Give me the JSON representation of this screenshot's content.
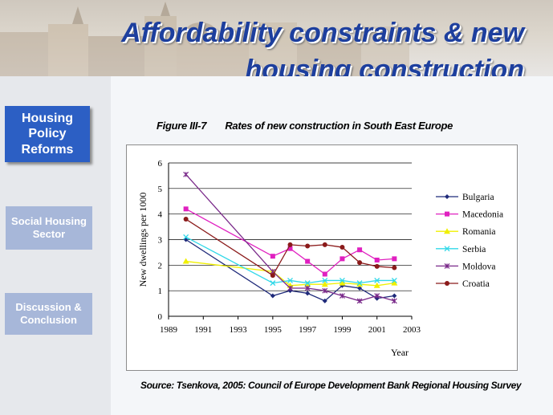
{
  "slide": {
    "title_line1": "Affordability constraints & new",
    "title_line2": "housing construction",
    "figure_title": "Figure III-7       Rates of new construction in South East Europe",
    "source": "Source: Tsenkova, 2005: Council of Europe Development Bank Regional Housing Survey"
  },
  "sidebar": {
    "items": [
      {
        "label": "Housing Policy Reforms",
        "active": true
      },
      {
        "label": "Social Housing Sector",
        "active": false
      },
      {
        "label": "Discussion & Conclusion",
        "active": false
      }
    ]
  },
  "chart_data": {
    "type": "line",
    "xlabel": "Year",
    "ylabel": "New dwellings per 1000",
    "xlim": [
      1989,
      2003
    ],
    "ylim": [
      0,
      6
    ],
    "xticks": [
      1989,
      1991,
      1993,
      1995,
      1997,
      1999,
      2001,
      2003
    ],
    "yticks": [
      0,
      1,
      2,
      3,
      4,
      5,
      6
    ],
    "grid": "horizontal",
    "legend": "right",
    "series": [
      {
        "name": "Bulgaria",
        "color": "#1f2a7a",
        "marker": "diamond",
        "x": [
          1990,
          1995,
          1996,
          1997,
          1998,
          1999,
          2000,
          2001,
          2002
        ],
        "y": [
          3.0,
          0.8,
          1.0,
          0.9,
          0.6,
          1.2,
          1.1,
          0.7,
          0.8
        ]
      },
      {
        "name": "Macedonia",
        "color": "#e020c0",
        "marker": "square",
        "x": [
          1990,
          1995,
          1996,
          1997,
          1998,
          1999,
          2000,
          2001,
          2002
        ],
        "y": [
          4.2,
          2.35,
          2.65,
          2.15,
          1.65,
          2.25,
          2.6,
          2.2,
          2.25
        ]
      },
      {
        "name": "Romania",
        "color": "#f0f000",
        "marker": "triangle",
        "x": [
          1990,
          1995,
          1996,
          1997,
          1998,
          1999,
          2000,
          2001,
          2002
        ],
        "y": [
          2.15,
          1.75,
          1.2,
          1.25,
          1.25,
          1.3,
          1.25,
          1.2,
          1.3
        ]
      },
      {
        "name": "Serbia",
        "color": "#30d8e8",
        "marker": "x",
        "x": [
          1990,
          1995,
          1996,
          1997,
          1998,
          1999,
          2000,
          2001,
          2002
        ],
        "y": [
          3.1,
          1.3,
          1.4,
          1.3,
          1.4,
          1.4,
          1.3,
          1.4,
          1.4
        ]
      },
      {
        "name": "Moldova",
        "color": "#7a2a8a",
        "marker": "star",
        "x": [
          1990,
          1995,
          1996,
          1997,
          1998,
          1999,
          2000,
          2001,
          2002
        ],
        "y": [
          5.55,
          1.75,
          1.1,
          1.1,
          1.0,
          0.8,
          0.6,
          0.8,
          0.6
        ]
      },
      {
        "name": "Croatia",
        "color": "#8b1a1a",
        "marker": "circle",
        "x": [
          1990,
          1995,
          1996,
          1997,
          1998,
          1999,
          2000,
          2001,
          2002
        ],
        "y": [
          3.8,
          1.6,
          2.8,
          2.75,
          2.8,
          2.7,
          2.1,
          1.95,
          1.9
        ]
      }
    ]
  }
}
